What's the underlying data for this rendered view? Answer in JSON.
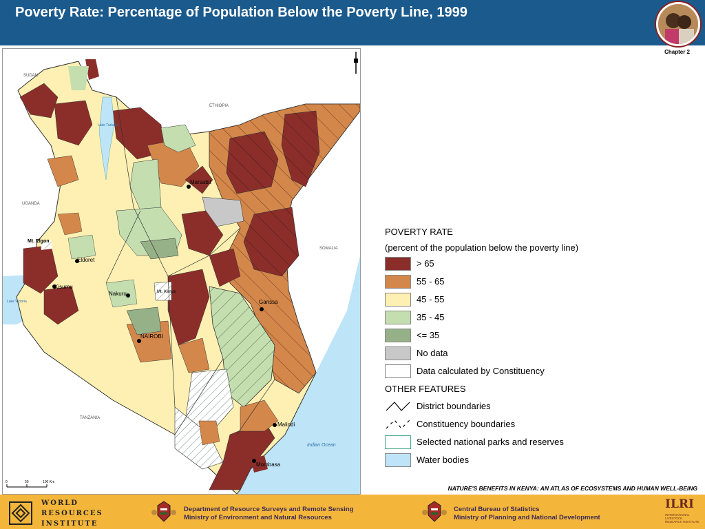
{
  "header": {
    "title": "Poverty Rate: Percentage of Population Below the Poverty Line, 1999",
    "chapter": "Chapter 2"
  },
  "map": {
    "countries": [
      "SUDAN",
      "ETHIOPIA",
      "UGANDA",
      "SOMALIA",
      "TANZANIA"
    ],
    "lakes": [
      "Lake Turkana",
      "Lake Victoria"
    ],
    "ocean": "Indian Ocean",
    "towns": [
      "Marsabit",
      "Eldoret",
      "Kisumu",
      "Nakuru",
      "NAIROBI",
      "Garissa",
      "Malindi",
      "Mombasa"
    ],
    "mountains": [
      "Mt. Elgon",
      "Mt. Kenya"
    ],
    "scale_labels": [
      "0",
      "50",
      "100 Km"
    ],
    "colors": {
      "gt65": "#8b2e2a",
      "55_65": "#d4874a",
      "45_55": "#fdf0b2",
      "35_45": "#c4deb0",
      "le35": "#96b088",
      "nodata": "#c8c8c8",
      "water": "#bde4f7"
    }
  },
  "legend": {
    "title": "POVERTY RATE",
    "subtitle": "(percent of the population below the poverty line)",
    "classes": [
      {
        "label": "> 65",
        "color": "#8b2e2a"
      },
      {
        "label": "55 - 65",
        "color": "#d4874a"
      },
      {
        "label": "45 - 55",
        "color": "#fdf0b2"
      },
      {
        "label": "35 - 45",
        "color": "#c4deb0"
      },
      {
        "label": "<= 35",
        "color": "#96b088"
      },
      {
        "label": "No data",
        "color": "#c8c8c8"
      },
      {
        "label": "Data calculated by Constituency",
        "color": "#ffffff"
      }
    ],
    "other_title": "OTHER FEATURES",
    "features": [
      {
        "label": "District boundaries",
        "icon": "solid-line-icon"
      },
      {
        "label": "Constituency boundaries",
        "icon": "dashed-line-icon"
      },
      {
        "label": "Selected national parks and reserves",
        "icon": "park-outline-icon",
        "color": "#4aa88a"
      },
      {
        "label": "Water bodies",
        "icon": "water-icon",
        "color": "#bde4f7"
      }
    ]
  },
  "footer": {
    "atlas_title": "NATURE'S BENEFITS IN KENYA: AN ATLAS OF ECOSYSTEMS AND HUMAN WELL-BEING",
    "wri": [
      "WORLD",
      "RESOURCES",
      "INSTITUTE"
    ],
    "dept1": "Department of Resource Surveys and Remote Sensing",
    "ministry1": "Ministry of Environment and Natural Resources",
    "dept2": "Central Bureau of Statistics",
    "ministry2": "Ministry of Planning and National Development",
    "ilri": "ILRI",
    "ilri_sub": "INTERNATIONAL LIVESTOCK RESEARCH INSTITUTE"
  }
}
